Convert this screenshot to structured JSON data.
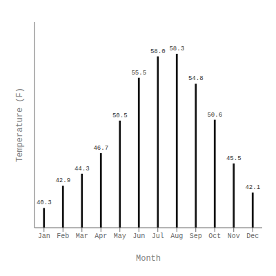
{
  "chart_data": {
    "type": "bar",
    "categories": [
      "Jan",
      "Feb",
      "Mar",
      "Apr",
      "May",
      "Jun",
      "Jul",
      "Aug",
      "Sep",
      "Oct",
      "Nov",
      "Dec"
    ],
    "values": [
      40.3,
      42.9,
      44.3,
      46.7,
      50.5,
      55.5,
      58.0,
      58.3,
      54.8,
      50.6,
      45.5,
      42.1
    ],
    "value_labels": [
      "40.3",
      "42.9",
      "44.3",
      "46.7",
      "50.5",
      "55.5",
      "58.0",
      "58.3",
      "54.8",
      "50.6",
      "45.5",
      "42.1"
    ],
    "color": "#111111",
    "xlabel": "Month",
    "ylabel": "Temperature (F)",
    "ylim": [
      38.0,
      62.0
    ],
    "data_labels": true,
    "tick_labels": "x"
  }
}
